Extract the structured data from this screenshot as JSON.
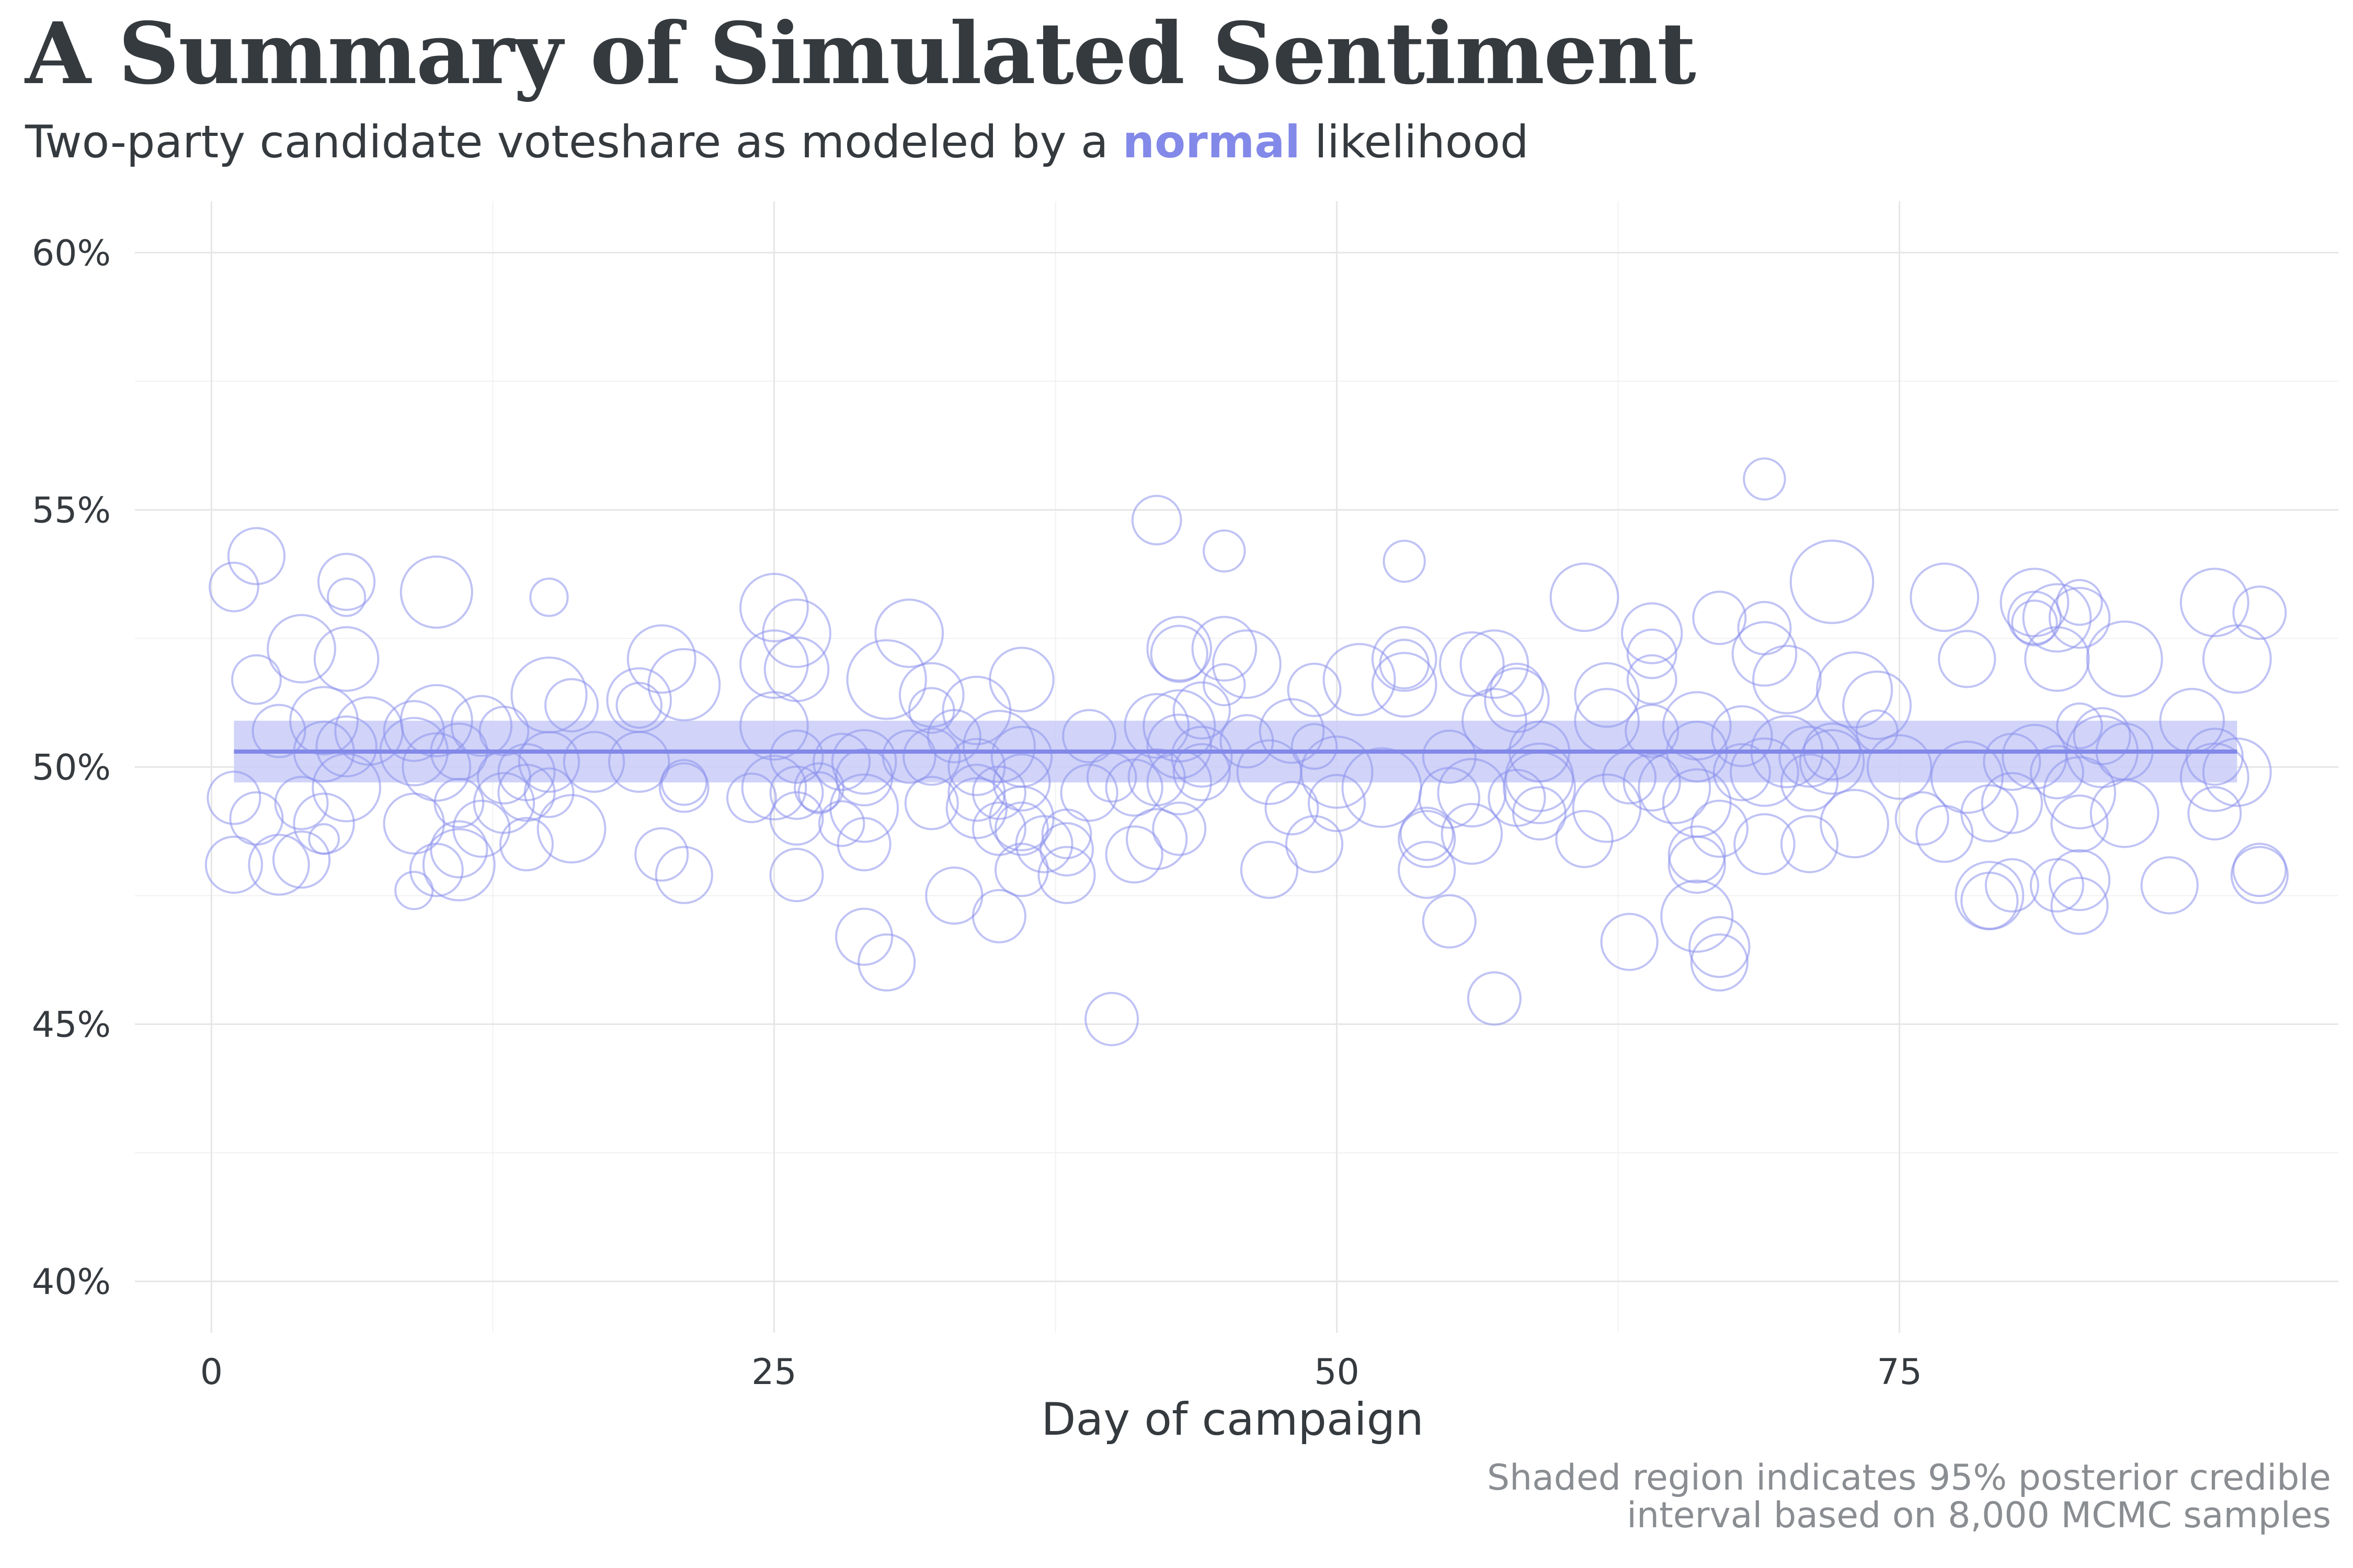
{
  "title": "A Summary of Simulated Sentiment",
  "subtitle": {
    "prefix": "Two-party candidate voteshare as modeled by a ",
    "highlight": "normal",
    "suffix": " likelihood"
  },
  "caption": {
    "line1": "Shaded region indicates 95% posterior credible",
    "line2": "interval based on 8,000 MCMC samples"
  },
  "colors": {
    "accent": "#8289e8",
    "band": "#c9ccf7",
    "points": "#8c91ec",
    "grid_major": "#e6e6e6",
    "grid_minor": "#f1f1f1",
    "text": "#353a3f",
    "caption": "#8a8d91"
  },
  "chart_data": {
    "type": "scatter",
    "xlabel": "Day of campaign",
    "ylabel": "",
    "xlim": [
      -3.4,
      94.5
    ],
    "ylim": [
      0.39,
      0.61
    ],
    "xticks": [
      0,
      25,
      50,
      75
    ],
    "xtick_labels": [
      "0",
      "25",
      "50",
      "75"
    ],
    "yticks": [
      0.4,
      0.45,
      0.5,
      0.55,
      0.6
    ],
    "ytick_labels": [
      "40%",
      "45%",
      "50%",
      "55%",
      "60%"
    ],
    "grid": true,
    "legend": "none",
    "fit_line": {
      "x": [
        1,
        90
      ],
      "y": [
        0.503,
        0.503
      ]
    },
    "credible_band": {
      "x": [
        1,
        90
      ],
      "lower": [
        0.497,
        0.497
      ],
      "upper": [
        0.509,
        0.509
      ]
    },
    "points": [
      {
        "x": 1,
        "y": 0.535,
        "size": 0.45
      },
      {
        "x": 1,
        "y": 0.494,
        "size": 0.5
      },
      {
        "x": 1,
        "y": 0.481,
        "size": 0.55
      },
      {
        "x": 2,
        "y": 0.541,
        "size": 0.55
      },
      {
        "x": 2,
        "y": 0.517,
        "size": 0.45
      },
      {
        "x": 2,
        "y": 0.49,
        "size": 0.5
      },
      {
        "x": 3,
        "y": 0.507,
        "size": 0.5
      },
      {
        "x": 3,
        "y": 0.481,
        "size": 0.6
      },
      {
        "x": 4,
        "y": 0.523,
        "size": 0.7
      },
      {
        "x": 4,
        "y": 0.493,
        "size": 0.5
      },
      {
        "x": 4,
        "y": 0.482,
        "size": 0.55
      },
      {
        "x": 5,
        "y": 0.509,
        "size": 0.7
      },
      {
        "x": 5,
        "y": 0.503,
        "size": 0.6
      },
      {
        "x": 5,
        "y": 0.489,
        "size": 0.6
      },
      {
        "x": 5,
        "y": 0.486,
        "size": 0.2
      },
      {
        "x": 6,
        "y": 0.536,
        "size": 0.55
      },
      {
        "x": 6,
        "y": 0.533,
        "size": 0.3
      },
      {
        "x": 6,
        "y": 0.521,
        "size": 0.65
      },
      {
        "x": 6,
        "y": 0.504,
        "size": 0.6
      },
      {
        "x": 6,
        "y": 0.496,
        "size": 0.7
      },
      {
        "x": 7,
        "y": 0.507,
        "size": 0.7
      },
      {
        "x": 9,
        "y": 0.507,
        "size": 0.6
      },
      {
        "x": 9,
        "y": 0.503,
        "size": 0.7
      },
      {
        "x": 9,
        "y": 0.489,
        "size": 0.6
      },
      {
        "x": 9,
        "y": 0.476,
        "size": 0.3
      },
      {
        "x": 10,
        "y": 0.534,
        "size": 0.75
      },
      {
        "x": 10,
        "y": 0.509,
        "size": 0.75
      },
      {
        "x": 10,
        "y": 0.5,
        "size": 0.7
      },
      {
        "x": 10,
        "y": 0.48,
        "size": 0.5
      },
      {
        "x": 11,
        "y": 0.503,
        "size": 0.55
      },
      {
        "x": 11,
        "y": 0.493,
        "size": 0.45
      },
      {
        "x": 11,
        "y": 0.484,
        "size": 0.55
      },
      {
        "x": 11,
        "y": 0.481,
        "size": 0.75
      },
      {
        "x": 12,
        "y": 0.508,
        "size": 0.6
      },
      {
        "x": 12,
        "y": 0.488,
        "size": 0.55
      },
      {
        "x": 13,
        "y": 0.507,
        "size": 0.45
      },
      {
        "x": 13,
        "y": 0.498,
        "size": 0.5
      },
      {
        "x": 13,
        "y": 0.493,
        "size": 0.6
      },
      {
        "x": 14,
        "y": 0.499,
        "size": 0.55
      },
      {
        "x": 14,
        "y": 0.495,
        "size": 0.55
      },
      {
        "x": 14,
        "y": 0.485,
        "size": 0.5
      },
      {
        "x": 15,
        "y": 0.533,
        "size": 0.3
      },
      {
        "x": 15,
        "y": 0.514,
        "size": 0.8
      },
      {
        "x": 15,
        "y": 0.501,
        "size": 0.6
      },
      {
        "x": 15,
        "y": 0.495,
        "size": 0.45
      },
      {
        "x": 16,
        "y": 0.512,
        "size": 0.5
      },
      {
        "x": 16,
        "y": 0.488,
        "size": 0.7
      },
      {
        "x": 17,
        "y": 0.501,
        "size": 0.6
      },
      {
        "x": 19,
        "y": 0.513,
        "size": 0.65
      },
      {
        "x": 19,
        "y": 0.512,
        "size": 0.4
      },
      {
        "x": 19,
        "y": 0.501,
        "size": 0.6
      },
      {
        "x": 20,
        "y": 0.521,
        "size": 0.7
      },
      {
        "x": 20,
        "y": 0.483,
        "size": 0.5
      },
      {
        "x": 21,
        "y": 0.516,
        "size": 0.75
      },
      {
        "x": 21,
        "y": 0.497,
        "size": 0.4
      },
      {
        "x": 21,
        "y": 0.496,
        "size": 0.45
      },
      {
        "x": 21,
        "y": 0.479,
        "size": 0.55
      },
      {
        "x": 24,
        "y": 0.494,
        "size": 0.45
      },
      {
        "x": 25,
        "y": 0.531,
        "size": 0.7
      },
      {
        "x": 25,
        "y": 0.52,
        "size": 0.7
      },
      {
        "x": 25,
        "y": 0.508,
        "size": 0.7
      },
      {
        "x": 25,
        "y": 0.496,
        "size": 0.65
      },
      {
        "x": 26,
        "y": 0.526,
        "size": 0.7
      },
      {
        "x": 26,
        "y": 0.519,
        "size": 0.65
      },
      {
        "x": 26,
        "y": 0.502,
        "size": 0.5
      },
      {
        "x": 26,
        "y": 0.495,
        "size": 0.5
      },
      {
        "x": 26,
        "y": 0.49,
        "size": 0.5
      },
      {
        "x": 26,
        "y": 0.479,
        "size": 0.5
      },
      {
        "x": 27,
        "y": 0.496,
        "size": 0.45
      },
      {
        "x": 27,
        "y": 0.495,
        "size": 0.35
      },
      {
        "x": 28,
        "y": 0.501,
        "size": 0.55
      },
      {
        "x": 28,
        "y": 0.489,
        "size": 0.4
      },
      {
        "x": 29,
        "y": 0.501,
        "size": 0.65
      },
      {
        "x": 29,
        "y": 0.498,
        "size": 0.55
      },
      {
        "x": 29,
        "y": 0.492,
        "size": 0.7
      },
      {
        "x": 29,
        "y": 0.485,
        "size": 0.5
      },
      {
        "x": 29,
        "y": 0.467,
        "size": 0.55
      },
      {
        "x": 30,
        "y": 0.517,
        "size": 0.85
      },
      {
        "x": 30,
        "y": 0.462,
        "size": 0.55
      },
      {
        "x": 31,
        "y": 0.526,
        "size": 0.7
      },
      {
        "x": 31,
        "y": 0.502,
        "size": 0.5
      },
      {
        "x": 32,
        "y": 0.514,
        "size": 0.65
      },
      {
        "x": 32,
        "y": 0.511,
        "size": 0.4
      },
      {
        "x": 32,
        "y": 0.502,
        "size": 0.55
      },
      {
        "x": 32,
        "y": 0.493,
        "size": 0.5
      },
      {
        "x": 33,
        "y": 0.506,
        "size": 0.5
      },
      {
        "x": 33,
        "y": 0.475,
        "size": 0.55
      },
      {
        "x": 34,
        "y": 0.511,
        "size": 0.7
      },
      {
        "x": 34,
        "y": 0.5,
        "size": 0.55
      },
      {
        "x": 34,
        "y": 0.495,
        "size": 0.55
      },
      {
        "x": 34,
        "y": 0.492,
        "size": 0.6
      },
      {
        "x": 35,
        "y": 0.504,
        "size": 0.75
      },
      {
        "x": 35,
        "y": 0.495,
        "size": 0.5
      },
      {
        "x": 35,
        "y": 0.488,
        "size": 0.5
      },
      {
        "x": 35,
        "y": 0.471,
        "size": 0.5
      },
      {
        "x": 36,
        "y": 0.517,
        "size": 0.65
      },
      {
        "x": 36,
        "y": 0.502,
        "size": 0.6
      },
      {
        "x": 36,
        "y": 0.497,
        "size": 0.55
      },
      {
        "x": 36,
        "y": 0.49,
        "size": 0.65
      },
      {
        "x": 36,
        "y": 0.488,
        "size": 0.5
      },
      {
        "x": 36,
        "y": 0.48,
        "size": 0.5
      },
      {
        "x": 37,
        "y": 0.485,
        "size": 0.55
      },
      {
        "x": 38,
        "y": 0.487,
        "size": 0.45
      },
      {
        "x": 38,
        "y": 0.484,
        "size": 0.5
      },
      {
        "x": 38,
        "y": 0.479,
        "size": 0.55
      },
      {
        "x": 39,
        "y": 0.506,
        "size": 0.5
      },
      {
        "x": 39,
        "y": 0.495,
        "size": 0.55
      },
      {
        "x": 40,
        "y": 0.498,
        "size": 0.45
      },
      {
        "x": 40,
        "y": 0.451,
        "size": 0.5
      },
      {
        "x": 41,
        "y": 0.496,
        "size": 0.55
      },
      {
        "x": 41,
        "y": 0.483,
        "size": 0.55
      },
      {
        "x": 42,
        "y": 0.548,
        "size": 0.45
      },
      {
        "x": 42,
        "y": 0.508,
        "size": 0.65
      },
      {
        "x": 42,
        "y": 0.498,
        "size": 0.55
      },
      {
        "x": 42,
        "y": 0.486,
        "size": 0.6
      },
      {
        "x": 43,
        "y": 0.523,
        "size": 0.65
      },
      {
        "x": 43,
        "y": 0.522,
        "size": 0.55
      },
      {
        "x": 43,
        "y": 0.508,
        "size": 0.75
      },
      {
        "x": 43,
        "y": 0.504,
        "size": 0.65
      },
      {
        "x": 43,
        "y": 0.497,
        "size": 0.65
      },
      {
        "x": 43,
        "y": 0.488,
        "size": 0.5
      },
      {
        "x": 44,
        "y": 0.511,
        "size": 0.55
      },
      {
        "x": 44,
        "y": 0.502,
        "size": 0.6
      },
      {
        "x": 44,
        "y": 0.499,
        "size": 0.55
      },
      {
        "x": 45,
        "y": 0.542,
        "size": 0.35
      },
      {
        "x": 45,
        "y": 0.523,
        "size": 0.65
      },
      {
        "x": 45,
        "y": 0.516,
        "size": 0.35
      },
      {
        "x": 46,
        "y": 0.52,
        "size": 0.7
      },
      {
        "x": 46,
        "y": 0.505,
        "size": 0.5
      },
      {
        "x": 47,
        "y": 0.499,
        "size": 0.65
      },
      {
        "x": 47,
        "y": 0.48,
        "size": 0.55
      },
      {
        "x": 48,
        "y": 0.507,
        "size": 0.65
      },
      {
        "x": 48,
        "y": 0.492,
        "size": 0.5
      },
      {
        "x": 49,
        "y": 0.515,
        "size": 0.5
      },
      {
        "x": 49,
        "y": 0.504,
        "size": 0.4
      },
      {
        "x": 49,
        "y": 0.485,
        "size": 0.55
      },
      {
        "x": 50,
        "y": 0.499,
        "size": 0.75
      },
      {
        "x": 50,
        "y": 0.493,
        "size": 0.55
      },
      {
        "x": 51,
        "y": 0.517,
        "size": 0.75
      },
      {
        "x": 52,
        "y": 0.496,
        "size": 0.85
      },
      {
        "x": 53,
        "y": 0.54,
        "size": 0.35
      },
      {
        "x": 53,
        "y": 0.521,
        "size": 0.65
      },
      {
        "x": 53,
        "y": 0.52,
        "size": 0.45
      },
      {
        "x": 53,
        "y": 0.516,
        "size": 0.65
      },
      {
        "x": 54,
        "y": 0.487,
        "size": 0.5
      },
      {
        "x": 54,
        "y": 0.486,
        "size": 0.55
      },
      {
        "x": 54,
        "y": 0.48,
        "size": 0.55
      },
      {
        "x": 55,
        "y": 0.502,
        "size": 0.5
      },
      {
        "x": 55,
        "y": 0.494,
        "size": 0.6
      },
      {
        "x": 55,
        "y": 0.47,
        "size": 0.5
      },
      {
        "x": 56,
        "y": 0.52,
        "size": 0.65
      },
      {
        "x": 56,
        "y": 0.495,
        "size": 0.7
      },
      {
        "x": 56,
        "y": 0.487,
        "size": 0.6
      },
      {
        "x": 57,
        "y": 0.52,
        "size": 0.7
      },
      {
        "x": 57,
        "y": 0.509,
        "size": 0.65
      },
      {
        "x": 57,
        "y": 0.455,
        "size": 0.5
      },
      {
        "x": 58,
        "y": 0.515,
        "size": 0.5
      },
      {
        "x": 58,
        "y": 0.513,
        "size": 0.65
      },
      {
        "x": 58,
        "y": 0.494,
        "size": 0.55
      },
      {
        "x": 59,
        "y": 0.503,
        "size": 0.6
      },
      {
        "x": 59,
        "y": 0.498,
        "size": 0.7
      },
      {
        "x": 59,
        "y": 0.496,
        "size": 0.75
      },
      {
        "x": 59,
        "y": 0.491,
        "size": 0.5
      },
      {
        "x": 61,
        "y": 0.533,
        "size": 0.7
      },
      {
        "x": 61,
        "y": 0.486,
        "size": 0.55
      },
      {
        "x": 62,
        "y": 0.514,
        "size": 0.65
      },
      {
        "x": 62,
        "y": 0.509,
        "size": 0.65
      },
      {
        "x": 62,
        "y": 0.492,
        "size": 0.7
      },
      {
        "x": 63,
        "y": 0.498,
        "size": 0.5
      },
      {
        "x": 63,
        "y": 0.466,
        "size": 0.55
      },
      {
        "x": 64,
        "y": 0.526,
        "size": 0.6
      },
      {
        "x": 64,
        "y": 0.522,
        "size": 0.45
      },
      {
        "x": 64,
        "y": 0.517,
        "size": 0.45
      },
      {
        "x": 64,
        "y": 0.507,
        "size": 0.5
      },
      {
        "x": 64,
        "y": 0.497,
        "size": 0.55
      },
      {
        "x": 65,
        "y": 0.496,
        "size": 0.75
      },
      {
        "x": 66,
        "y": 0.508,
        "size": 0.7
      },
      {
        "x": 66,
        "y": 0.503,
        "size": 0.6
      },
      {
        "x": 66,
        "y": 0.493,
        "size": 0.7
      },
      {
        "x": 66,
        "y": 0.483,
        "size": 0.55
      },
      {
        "x": 66,
        "y": 0.481,
        "size": 0.55
      },
      {
        "x": 66,
        "y": 0.471,
        "size": 0.75
      },
      {
        "x": 67,
        "y": 0.529,
        "size": 0.5
      },
      {
        "x": 67,
        "y": 0.488,
        "size": 0.55
      },
      {
        "x": 67,
        "y": 0.465,
        "size": 0.6
      },
      {
        "x": 67,
        "y": 0.462,
        "size": 0.55
      },
      {
        "x": 68,
        "y": 0.506,
        "size": 0.6
      },
      {
        "x": 68,
        "y": 0.499,
        "size": 0.55
      },
      {
        "x": 69,
        "y": 0.556,
        "size": 0.35
      },
      {
        "x": 69,
        "y": 0.527,
        "size": 0.5
      },
      {
        "x": 69,
        "y": 0.522,
        "size": 0.65
      },
      {
        "x": 69,
        "y": 0.499,
        "size": 0.7
      },
      {
        "x": 69,
        "y": 0.485,
        "size": 0.6
      },
      {
        "x": 70,
        "y": 0.517,
        "size": 0.7
      },
      {
        "x": 70,
        "y": 0.503,
        "size": 0.75
      },
      {
        "x": 71,
        "y": 0.502,
        "size": 0.6
      },
      {
        "x": 71,
        "y": 0.497,
        "size": 0.55
      },
      {
        "x": 71,
        "y": 0.485,
        "size": 0.55
      },
      {
        "x": 72,
        "y": 0.536,
        "size": 0.9
      },
      {
        "x": 72,
        "y": 0.503,
        "size": 0.55
      },
      {
        "x": 72,
        "y": 0.501,
        "size": 0.65
      },
      {
        "x": 73,
        "y": 0.515,
        "size": 0.8
      },
      {
        "x": 73,
        "y": 0.489,
        "size": 0.7
      },
      {
        "x": 74,
        "y": 0.512,
        "size": 0.7
      },
      {
        "x": 74,
        "y": 0.507,
        "size": 0.35
      },
      {
        "x": 75,
        "y": 0.5,
        "size": 0.65
      },
      {
        "x": 76,
        "y": 0.49,
        "size": 0.5
      },
      {
        "x": 77,
        "y": 0.533,
        "size": 0.7
      },
      {
        "x": 77,
        "y": 0.487,
        "size": 0.55
      },
      {
        "x": 78,
        "y": 0.521,
        "size": 0.55
      },
      {
        "x": 78,
        "y": 0.498,
        "size": 0.75
      },
      {
        "x": 79,
        "y": 0.491,
        "size": 0.55
      },
      {
        "x": 79,
        "y": 0.475,
        "size": 0.7
      },
      {
        "x": 79,
        "y": 0.474,
        "size": 0.55
      },
      {
        "x": 80,
        "y": 0.501,
        "size": 0.55
      },
      {
        "x": 80,
        "y": 0.493,
        "size": 0.6
      },
      {
        "x": 80,
        "y": 0.477,
        "size": 0.5
      },
      {
        "x": 81,
        "y": 0.532,
        "size": 0.7
      },
      {
        "x": 81,
        "y": 0.529,
        "size": 0.5
      },
      {
        "x": 81,
        "y": 0.528,
        "size": 0.4
      },
      {
        "x": 81,
        "y": 0.502,
        "size": 0.65
      },
      {
        "x": 82,
        "y": 0.529,
        "size": 0.7
      },
      {
        "x": 82,
        "y": 0.521,
        "size": 0.65
      },
      {
        "x": 82,
        "y": 0.499,
        "size": 0.5
      },
      {
        "x": 82,
        "y": 0.477,
        "size": 0.5
      },
      {
        "x": 83,
        "y": 0.532,
        "size": 0.4
      },
      {
        "x": 83,
        "y": 0.529,
        "size": 0.6
      },
      {
        "x": 83,
        "y": 0.508,
        "size": 0.4
      },
      {
        "x": 83,
        "y": 0.495,
        "size": 0.75
      },
      {
        "x": 83,
        "y": 0.489,
        "size": 0.55
      },
      {
        "x": 83,
        "y": 0.478,
        "size": 0.6
      },
      {
        "x": 83,
        "y": 0.473,
        "size": 0.55
      },
      {
        "x": 84,
        "y": 0.506,
        "size": 0.55
      },
      {
        "x": 84,
        "y": 0.503,
        "size": 0.75
      },
      {
        "x": 85,
        "y": 0.521,
        "size": 0.8
      },
      {
        "x": 85,
        "y": 0.503,
        "size": 0.55
      },
      {
        "x": 85,
        "y": 0.491,
        "size": 0.7
      },
      {
        "x": 87,
        "y": 0.477,
        "size": 0.55
      },
      {
        "x": 88,
        "y": 0.509,
        "size": 0.65
      },
      {
        "x": 89,
        "y": 0.532,
        "size": 0.7
      },
      {
        "x": 89,
        "y": 0.502,
        "size": 0.55
      },
      {
        "x": 89,
        "y": 0.498,
        "size": 0.7
      },
      {
        "x": 89,
        "y": 0.491,
        "size": 0.5
      },
      {
        "x": 90,
        "y": 0.521,
        "size": 0.7
      },
      {
        "x": 90,
        "y": 0.499,
        "size": 0.7
      },
      {
        "x": 91,
        "y": 0.53,
        "size": 0.5
      },
      {
        "x": 91,
        "y": 0.48,
        "size": 0.5
      },
      {
        "x": 91,
        "y": 0.479,
        "size": 0.55
      }
    ]
  }
}
